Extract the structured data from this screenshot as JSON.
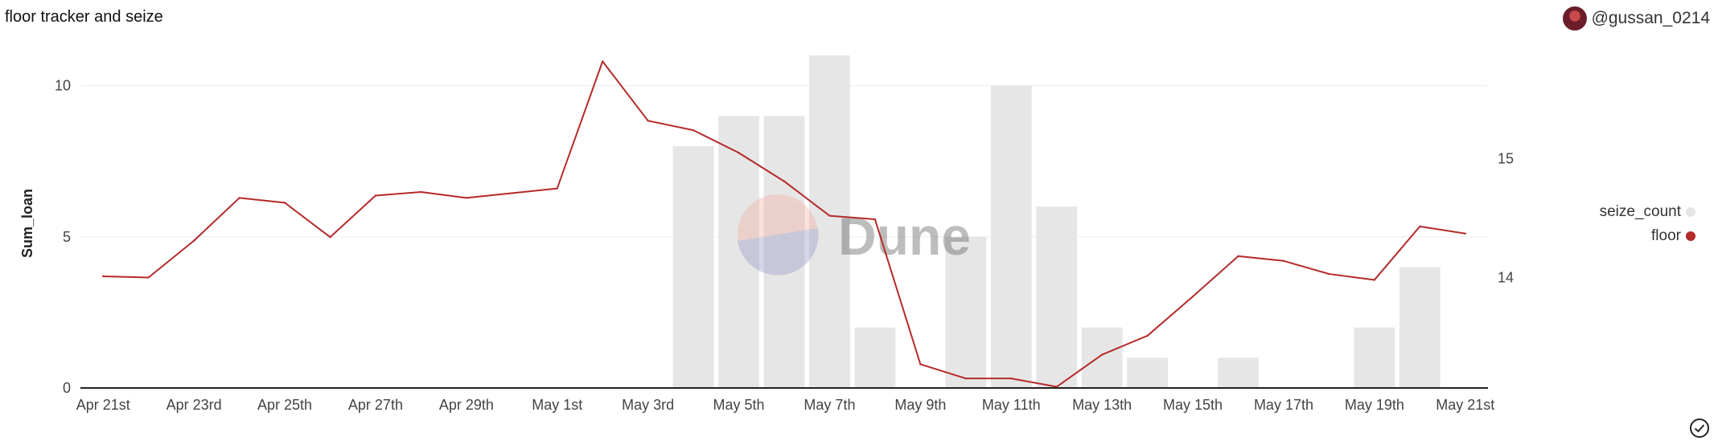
{
  "header": {
    "title": "floor tracker and seize",
    "author": "@gussan_0214"
  },
  "watermark": "Dune",
  "colors": {
    "bar": "#e6e6e6",
    "line": "#b52a2a",
    "grid": "#ececec"
  },
  "chart_data": {
    "type": "bar",
    "title": "floor tracker and seize",
    "ylabel": "Sum_loan",
    "x": [
      "Apr 21st",
      "Apr 22nd",
      "Apr 23rd",
      "Apr 24th",
      "Apr 25th",
      "Apr 26th",
      "Apr 27th",
      "Apr 28th",
      "Apr 29th",
      "Apr 30th",
      "May 1st",
      "May 2nd",
      "May 3rd",
      "May 4th",
      "May 5th",
      "May 6th",
      "May 7th",
      "May 8th",
      "May 9th",
      "May 10th",
      "May 11th",
      "May 12th",
      "May 13th",
      "May 14th",
      "May 15th",
      "May 16th",
      "May 17th",
      "May 18th",
      "May 19th",
      "May 20th",
      "May 21st"
    ],
    "xticks": [
      "Apr 21st",
      "Apr 23rd",
      "Apr 25th",
      "Apr 27th",
      "Apr 29th",
      "May 1st",
      "May 3rd",
      "May 5th",
      "May 7th",
      "May 9th",
      "May 11th",
      "May 13th",
      "May 15th",
      "May 17th",
      "May 19th",
      "May 21st"
    ],
    "ylim_left": [
      0,
      11
    ],
    "yticks_left": [
      0,
      5,
      10
    ],
    "ylim_right": [
      13.07,
      15.87
    ],
    "yticks_right": [
      14,
      15
    ],
    "series": [
      {
        "name": "seize_count",
        "type": "bar",
        "axis": "left",
        "values": [
          0,
          0,
          0,
          0,
          0,
          0,
          0,
          0,
          0,
          0,
          0,
          0,
          0,
          8,
          9,
          9,
          11,
          2,
          0,
          5,
          10,
          6,
          2,
          1,
          0,
          1,
          0,
          0,
          2,
          4,
          0
        ]
      },
      {
        "name": "floor",
        "type": "line",
        "axis": "right",
        "values": [
          14.01,
          14.0,
          14.31,
          14.67,
          14.63,
          14.34,
          14.69,
          14.72,
          14.67,
          14.71,
          14.75,
          15.82,
          15.32,
          15.24,
          15.05,
          14.81,
          14.52,
          14.49,
          13.27,
          13.15,
          13.15,
          13.08,
          13.35,
          13.51,
          13.84,
          14.18,
          14.14,
          14.03,
          13.98,
          14.43,
          14.37
        ]
      }
    ],
    "legend": [
      "seize_count",
      "floor"
    ],
    "legend_position": "right"
  }
}
